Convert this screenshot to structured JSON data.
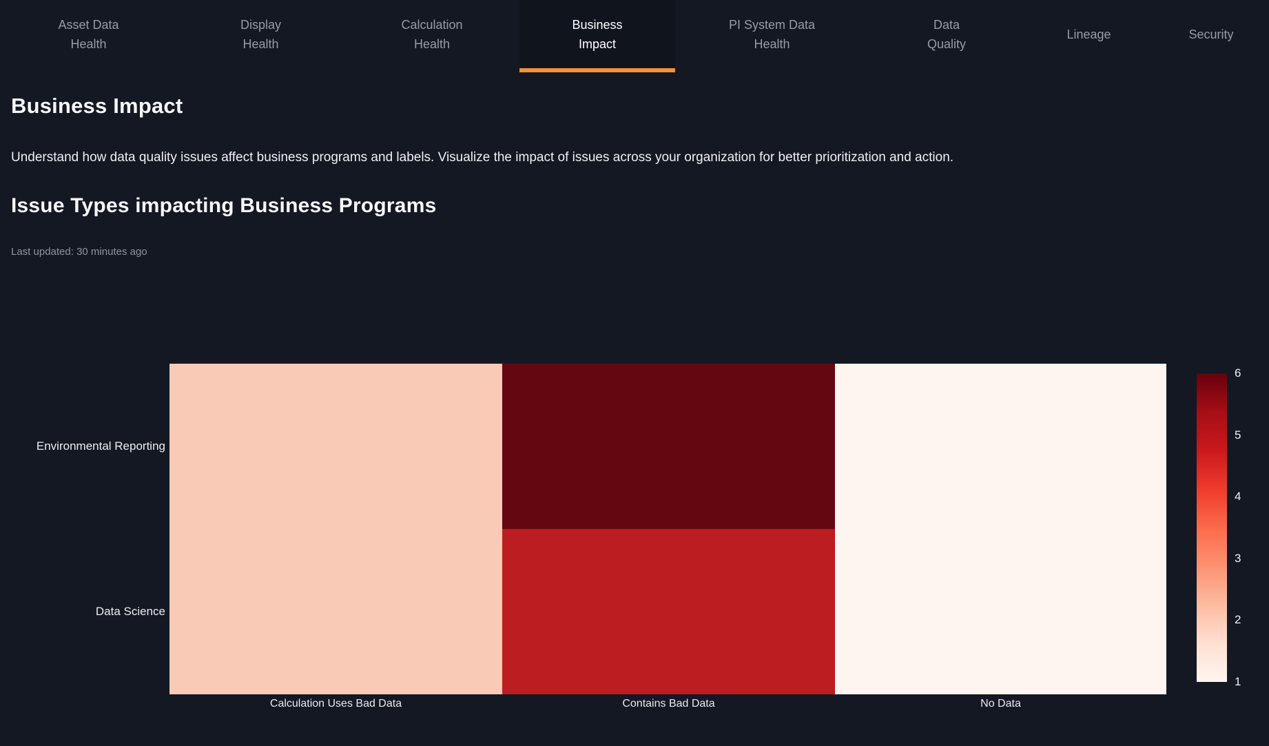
{
  "colors": {
    "background": "#141823",
    "active_tab_background": "#10141d",
    "accent_orange": "#f5932f",
    "tab_text": "#979ca6",
    "active_tab_text": "#ffffff",
    "heading_text": "#f6f7f9",
    "muted_text": "#8f949c"
  },
  "tabs": [
    {
      "label": "Asset Data\nHealth",
      "active": false
    },
    {
      "label": "Display\nHealth",
      "active": false
    },
    {
      "label": "Calculation\nHealth",
      "active": false
    },
    {
      "label": "Business\nImpact",
      "active": true
    },
    {
      "label": "PI System Data\nHealth",
      "active": false
    },
    {
      "label": "Data\nQuality",
      "active": false
    },
    {
      "label": "Lineage",
      "active": false
    },
    {
      "label": "Security",
      "active": false
    }
  ],
  "page": {
    "title": "Business Impact",
    "description": "Understand how data quality issues affect business programs and labels. Visualize the impact of issues across your organization for better prioritization and action."
  },
  "section": {
    "title": "Issue Types impacting Business Programs",
    "last_updated": "Last updated: 30 minutes ago"
  },
  "chart_data": {
    "type": "heatmap",
    "title": "Issue Types impacting Business Programs",
    "rows": [
      "Environmental Reporting",
      "Data Science"
    ],
    "categories": [
      "Calculation Uses Bad Data",
      "Contains Bad Data",
      "No Data"
    ],
    "values": [
      [
        2,
        6,
        1
      ],
      [
        2,
        5,
        1
      ]
    ],
    "cell_colors": [
      [
        "#f9cab6",
        "#650710",
        "#fff5f0"
      ],
      [
        "#f9cab6",
        "#bc1d20",
        "#fff5f0"
      ]
    ],
    "colorscale": {
      "name": "Reds",
      "min": 1,
      "max": 6
    },
    "colorbar": {
      "ticks": [
        "6",
        "5",
        "4",
        "3",
        "2",
        "1"
      ],
      "gradient_top_to_bottom": [
        "#67000d",
        "#a50f15",
        "#cb181d",
        "#ef3b2c",
        "#fb6a4a",
        "#fc9272",
        "#fcbba1",
        "#fee0d2",
        "#fff5f0"
      ],
      "position": "right"
    },
    "legend_position": "right",
    "grid": false
  }
}
